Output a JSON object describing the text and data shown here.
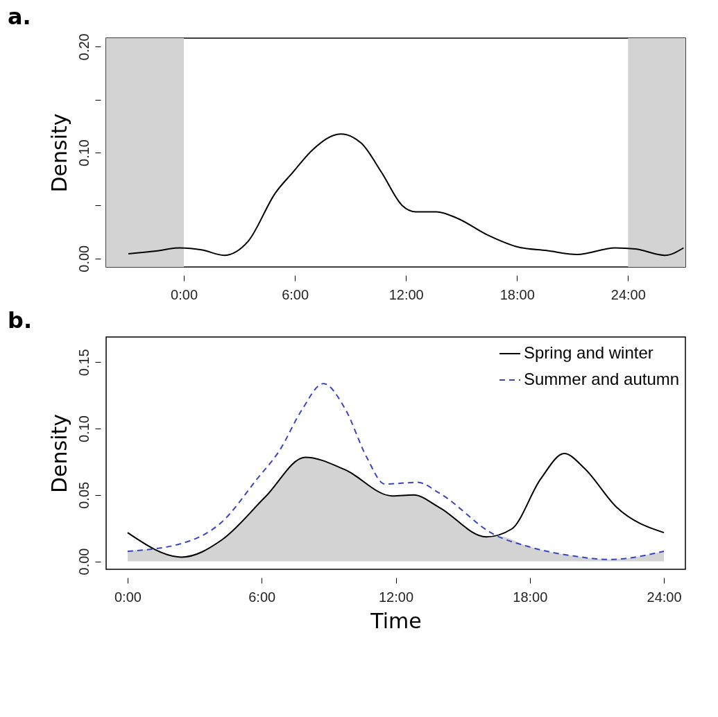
{
  "chart_data": [
    {
      "type": "line",
      "title": "a.",
      "ylabel": "Density",
      "xlim": [
        -4.2,
        27.1
      ],
      "ylim": [
        -0.008,
        0.208
      ],
      "xticks": [
        {
          "value": 0,
          "label": "0:00"
        },
        {
          "value": 6,
          "label": "6:00"
        },
        {
          "value": 12,
          "label": "12:00"
        },
        {
          "value": 18,
          "label": "18:00"
        },
        {
          "value": 24,
          "label": "24:00"
        }
      ],
      "yticks": [
        {
          "value": 0,
          "label": "0.00"
        },
        {
          "value": 0.05,
          "label": null
        },
        {
          "value": 0.1,
          "label": "0.10"
        },
        {
          "value": 0.15,
          "label": null
        },
        {
          "value": 0.2,
          "label": "0.20"
        }
      ],
      "bands": [
        {
          "axis": "x",
          "from": -4.2,
          "to": 0,
          "color": "#d3d3d3"
        },
        {
          "axis": "x",
          "from": 24,
          "to": 27.1,
          "color": "#d3d3d3"
        }
      ],
      "grid": false,
      "line_style": "solid",
      "series": [
        {
          "color": "#000000",
          "x": [
            -3,
            -1.5,
            -0.24,
            1,
            2.17,
            3.46,
            4.95,
            5.87,
            6.98,
            8.47,
            9.58,
            10.69,
            11.8,
            12.54,
            13.65,
            14.77,
            16.43,
            18.1,
            19.6,
            21.25,
            23.3,
            24.4,
            26,
            27
          ],
          "values": [
            0.0045,
            0.007,
            0.01,
            0.008,
            0.003,
            0.016,
            0.062,
            0.081,
            0.103,
            0.1175,
            0.109,
            0.081,
            0.05,
            0.044,
            0.044,
            0.038,
            0.022,
            0.0106,
            0.0075,
            0.0038,
            0.01,
            0.009,
            0.003,
            0.01
          ]
        }
      ]
    },
    {
      "type": "line",
      "title": "b.",
      "xlabel": "Time",
      "ylabel": "Density",
      "xlim": [
        -0.96,
        24.96
      ],
      "ylim": [
        -0.006,
        0.169
      ],
      "xticks": [
        {
          "value": 0,
          "label": "0:00"
        },
        {
          "value": 6,
          "label": "6:00"
        },
        {
          "value": 12,
          "label": "12:00"
        },
        {
          "value": 18,
          "label": "18:00"
        },
        {
          "value": 24,
          "label": "24:00"
        }
      ],
      "yticks": [
        {
          "value": 0,
          "label": "0.00"
        },
        {
          "value": 0.05,
          "label": "0.05"
        },
        {
          "value": 0.1,
          "label": "0.10"
        },
        {
          "value": 0.15,
          "label": "0.15"
        }
      ],
      "grid": false,
      "legend": "top right",
      "series": [
        {
          "type": "area",
          "color": "#d3d3d3",
          "x": [
            0,
            1,
            2.43,
            4.22,
            6.17,
            7.95,
            9.73,
            11.84,
            12.8,
            13.95,
            16.05,
            16.6,
            18,
            19.96,
            21.57,
            24
          ],
          "values": [
            0.0076,
            0.009,
            0.0032,
            0.0162,
            0.0487,
            0.0784,
            0.069,
            0.0493,
            0.05,
            0.0406,
            0.0184,
            0.019,
            0.0108,
            0.004,
            0.0014,
            0.0076
          ]
        },
        {
          "name": "Spring and winter",
          "color": "#000000",
          "line_style": "solid",
          "x": [
            0,
            2.43,
            4.22,
            6.17,
            7.95,
            9.73,
            11.84,
            12.8,
            13.95,
            16.05,
            17.18,
            18.49,
            19.54,
            20.43,
            21.89,
            24
          ],
          "values": [
            0.0216,
            0.0032,
            0.0162,
            0.0487,
            0.0784,
            0.069,
            0.0493,
            0.05,
            0.0406,
            0.0184,
            0.0243,
            0.0622,
            0.0812,
            0.0703,
            0.0406,
            0.0216
          ]
        },
        {
          "name": "Summer and autumn",
          "color": "#3a44c0",
          "line_style": "dashed",
          "x": [
            0,
            2.43,
            4.22,
            5.8,
            6.81,
            7.78,
            8.76,
            9.73,
            10.7,
            11.51,
            12.98,
            13.95,
            16.39,
            18,
            19.96,
            21.57,
            24
          ],
          "values": [
            0.0076,
            0.0135,
            0.0297,
            0.0622,
            0.0838,
            0.1136,
            0.1339,
            0.115,
            0.0784,
            0.0582,
            0.0595,
            0.0514,
            0.0203,
            0.0108,
            0.004,
            0.0014,
            0.0076
          ]
        }
      ]
    }
  ]
}
